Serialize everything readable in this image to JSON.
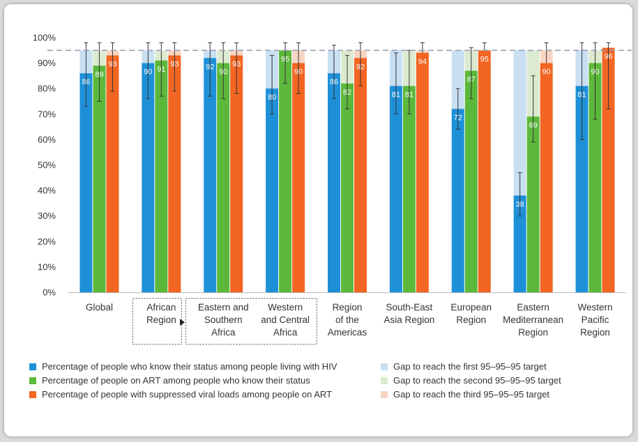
{
  "chart_data": {
    "type": "bar",
    "ylim": [
      0,
      100
    ],
    "yticks": [
      "0%",
      "10%",
      "20%",
      "30%",
      "40%",
      "50%",
      "60%",
      "70%",
      "80%",
      "90%",
      "100%"
    ],
    "target": 95,
    "categories": [
      [
        "Global"
      ],
      [
        "African",
        "Region"
      ],
      [
        "Eastern and",
        "Southern",
        "Africa"
      ],
      [
        "Western",
        "and Central",
        "Africa"
      ],
      [
        "Region",
        "of the",
        "Americas"
      ],
      [
        "South-East",
        "Asia Region"
      ],
      [
        "European",
        "Region"
      ],
      [
        "Eastern",
        "Mediterranean",
        "Region"
      ],
      [
        "Western",
        "Pacific",
        "Region"
      ]
    ],
    "series": [
      {
        "name": "Percentage of people who know their status among people living with HIV",
        "color": "#1e90d8",
        "gap_name": "Gap to reach the first 95–95–95 target",
        "gap_color": "#c9dff2",
        "values": [
          86,
          90,
          92,
          80,
          86,
          81,
          72,
          38,
          81
        ],
        "error_low": [
          73,
          76,
          77,
          70,
          76,
          70,
          64,
          30,
          60
        ],
        "error_high": [
          98,
          98,
          98,
          93,
          97,
          94,
          80,
          47,
          98
        ]
      },
      {
        "name": "Percentage of people on ART among people who know their status",
        "color": "#5cb83a",
        "gap_name": "Gap to reach the second 95–95–95 target",
        "gap_color": "#dcebd0",
        "values": [
          89,
          91,
          90,
          95,
          82,
          81,
          87,
          69,
          90
        ],
        "error_low": [
          75,
          77,
          76,
          82,
          72,
          70,
          76,
          59,
          68
        ],
        "error_high": [
          98,
          98,
          98,
          98,
          93,
          95,
          96,
          85,
          98
        ]
      },
      {
        "name": "Percentage of people with suppressed viral loads among people on ART",
        "color": "#f26522",
        "gap_name": "Gap to reach the third 95–95–95 target",
        "gap_color": "#f8d5c3",
        "values": [
          93,
          93,
          93,
          90,
          92,
          94,
          95,
          90,
          96
        ],
        "error_low": [
          79,
          79,
          78,
          78,
          81,
          null,
          null,
          null,
          72
        ],
        "error_high": [
          98,
          98,
          98,
          98,
          98,
          98,
          98,
          98,
          98
        ]
      }
    ]
  },
  "legend": {
    "bars": [
      "Percentage of people who know their status among people living with HIV",
      "Percentage of people on ART among people who know their status",
      "Percentage of people with suppressed viral loads among people on ART"
    ],
    "gaps": [
      "Gap to reach the first 95–95–95 target",
      "Gap to reach the second 95–95–95 target",
      "Gap to reach the third 95–95–95 target"
    ]
  },
  "colors": {
    "series": [
      "#1e90d8",
      "#5cb83a",
      "#f26522"
    ],
    "gaps": [
      "#c9dff2",
      "#dcebd0",
      "#f8d5c3"
    ],
    "target_line": "#9aa0b4"
  }
}
